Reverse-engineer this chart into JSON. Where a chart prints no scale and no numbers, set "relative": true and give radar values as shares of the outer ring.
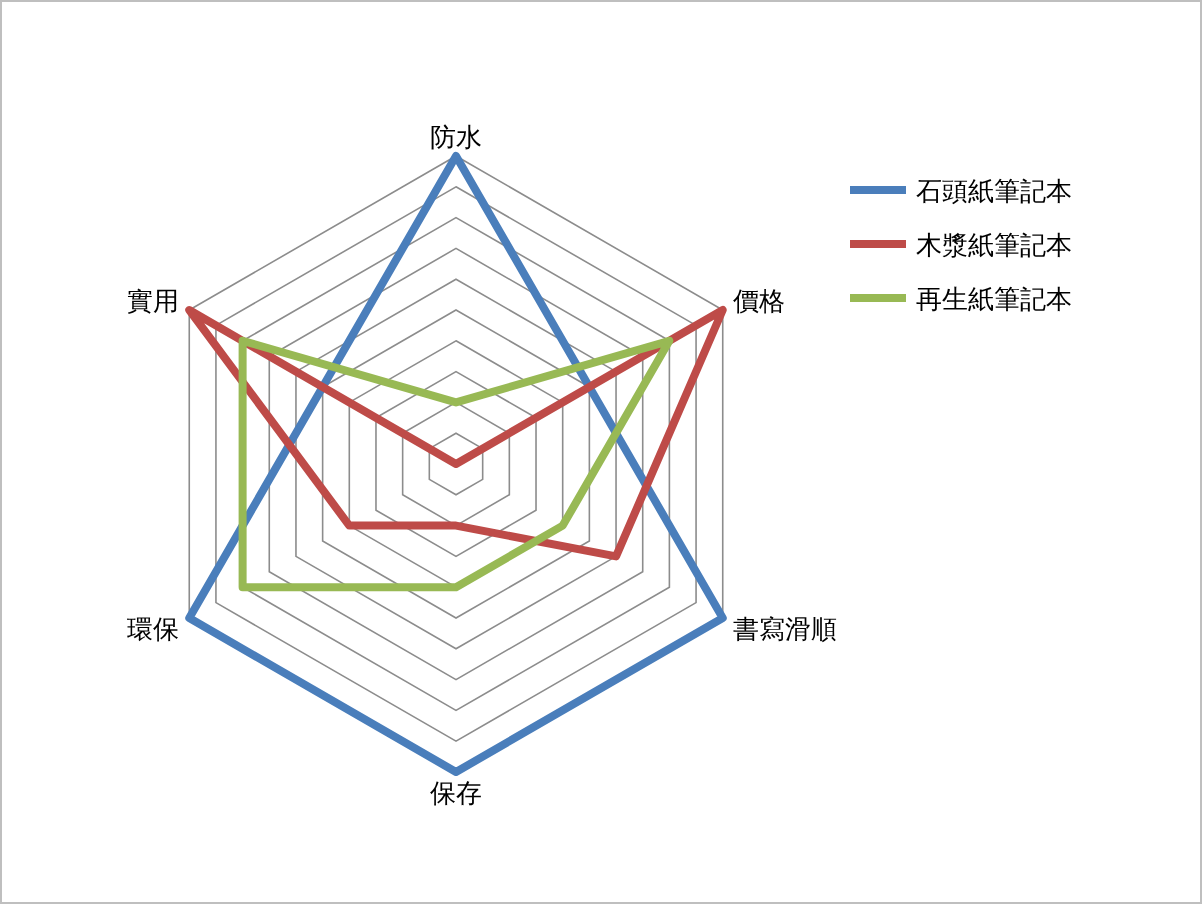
{
  "chart_data": {
    "type": "radar",
    "categories": [
      "防水",
      "價格",
      "書寫滑順",
      "保存",
      "環保",
      "實用"
    ],
    "relative": true,
    "grid": true,
    "legend": "top right",
    "series": [
      {
        "name": "石頭紙筆記本",
        "color": "#4a7ebb",
        "values": [
          1,
          0.5,
          1,
          1,
          1,
          0.5
        ]
      },
      {
        "name": "木漿紙筆記本",
        "color": "#be4b48",
        "values": [
          0,
          1,
          0.6,
          0.2,
          0.4,
          1
        ]
      },
      {
        "name": "再生紙筆記本",
        "color": "#98b954",
        "values": [
          0.2,
          0.8,
          0.4,
          0.4,
          0.8,
          0.8
        ]
      }
    ]
  }
}
